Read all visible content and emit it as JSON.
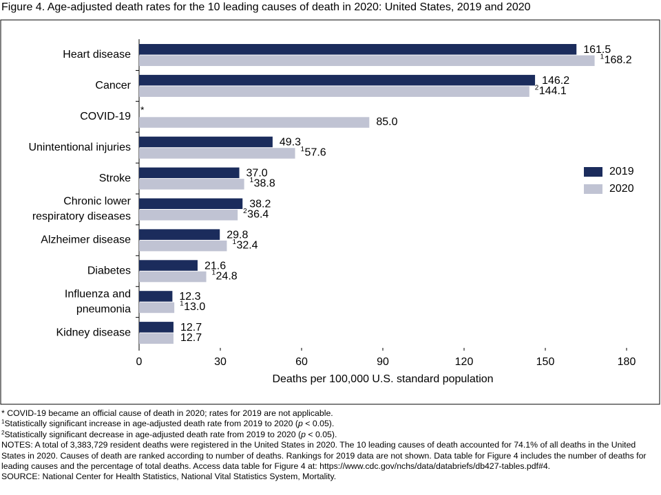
{
  "chart_data": {
    "type": "hbar",
    "title": "Figure 4. Age-adjusted death rates for the 10 leading causes of death in 2020: United States, 2019 and 2020",
    "categories": [
      [
        "Heart disease"
      ],
      [
        "Cancer"
      ],
      [
        "COVID-19"
      ],
      [
        "Unintentional injuries"
      ],
      [
        "Stroke"
      ],
      [
        "Chronic lower",
        "respiratory diseases"
      ],
      [
        "Alzheimer disease"
      ],
      [
        "Diabetes"
      ],
      [
        "Influenza and",
        "pneumonia"
      ],
      [
        "Kidney disease"
      ]
    ],
    "series": [
      {
        "name": "2019",
        "color": "#1b2c5c",
        "values": [
          161.5,
          146.2,
          null,
          49.3,
          37.0,
          38.2,
          29.8,
          21.6,
          12.3,
          12.7
        ],
        "value_labels": [
          "161.5",
          "146.2",
          "*",
          "49.3",
          "37.0",
          "38.2",
          "29.8",
          "21.6",
          "12.3",
          "12.7"
        ]
      },
      {
        "name": "2020",
        "color": "#c0c3d3",
        "values": [
          168.2,
          144.1,
          85.0,
          57.6,
          38.8,
          36.4,
          32.4,
          24.8,
          13.0,
          12.7
        ],
        "value_labels": [
          "168.2",
          "144.1",
          "85.0",
          "57.6",
          "38.8",
          "36.4",
          "32.4",
          "24.8",
          "13.0",
          "12.7"
        ],
        "markers": [
          "1",
          "2",
          null,
          "1",
          "1",
          "2",
          "1",
          "1",
          "1",
          null
        ]
      }
    ],
    "xlim": [
      0,
      180
    ],
    "xticks": [
      0,
      30,
      60,
      90,
      120,
      150,
      180
    ],
    "xlabel": "Deaths per 100,000 U.S. standard population",
    "legend": "right"
  },
  "footnotes": {
    "star": "* COVID-19 became an official cause of death in 2020; rates for 2019 are not applicable.",
    "marked": [
      {
        "marker": "1",
        "parts": [
          "Statistically significant increase in age-adjusted death rate from 2019 to 2020 (",
          "p",
          " < 0.05)."
        ]
      },
      {
        "marker": "2",
        "parts": [
          "Statistically significant decrease in age-adjusted death rate from 2019 to 2020 (",
          "p",
          " < 0.05)."
        ]
      }
    ],
    "notes": "NOTES: A total of 3,383,729 resident deaths were registered in the United States in 2020. The 10 leading causes of death accounted for 74.1% of all deaths in the United States in 2020. Causes of death are ranked according to number of deaths. Rankings for 2019 data are not shown. Data table for Figure 4 includes the number of deaths for leading causes and the percentage of total deaths. Access data table for Figure 4 at: https://www.cdc.gov/nchs/data/databriefs/db427-tables.pdf#4.",
    "source": "SOURCE: National Center for Health Statistics, National Vital Statistics System, Mortality."
  }
}
